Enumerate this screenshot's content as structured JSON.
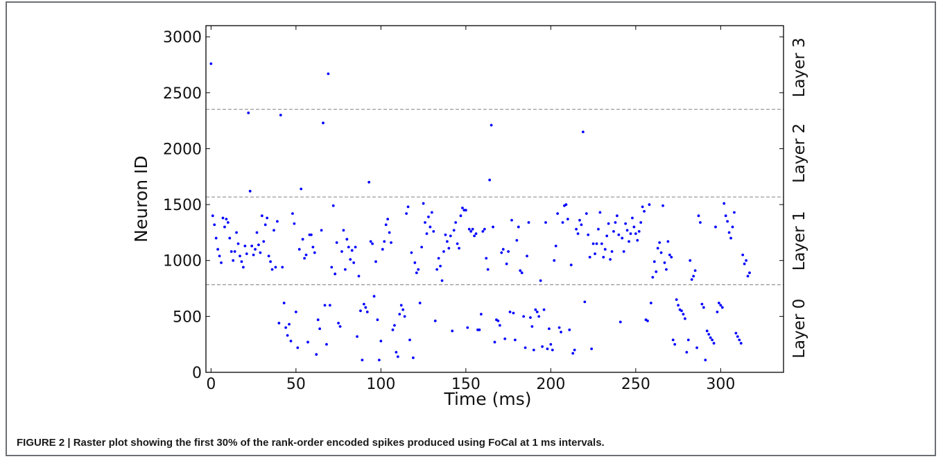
{
  "caption": "FIGURE 2 | Raster plot showing the first 30% of the rank-order encoded spikes produced using FoCal at 1 ms intervals.",
  "chart_data": {
    "type": "scatter",
    "xlabel": "Time (ms)",
    "ylabel": "Neuron ID",
    "xlim": [
      -3,
      337
    ],
    "ylim": [
      0,
      3100
    ],
    "xticks": [
      "0",
      "50",
      "100",
      "150",
      "200",
      "250",
      "300"
    ],
    "yticks": [
      "0",
      "500",
      "1000",
      "1500",
      "2000",
      "2500",
      "3000"
    ],
    "marker_color": "#0000ff",
    "grid": false,
    "layer_boundaries": [
      784,
      1568,
      2352
    ],
    "layer_labels": [
      {
        "label": "Layer 0",
        "y": 392
      },
      {
        "label": "Layer 1",
        "y": 1176
      },
      {
        "label": "Layer 2",
        "y": 1960
      },
      {
        "label": "Layer 3",
        "y": 2726
      }
    ],
    "points": [
      [
        0,
        2760
      ],
      [
        1,
        1400
      ],
      [
        2,
        1320
      ],
      [
        3,
        1200
      ],
      [
        4,
        1100
      ],
      [
        5,
        1040
      ],
      [
        6,
        980
      ],
      [
        7,
        1380
      ],
      [
        8,
        1300
      ],
      [
        9,
        1370
      ],
      [
        10,
        1340
      ],
      [
        11,
        1200
      ],
      [
        12,
        1080
      ],
      [
        13,
        1000
      ],
      [
        14,
        1080
      ],
      [
        15,
        1250
      ],
      [
        16,
        1150
      ],
      [
        17,
        1040
      ],
      [
        18,
        990
      ],
      [
        19,
        940
      ],
      [
        20,
        1130
      ],
      [
        21,
        1060
      ],
      [
        22,
        2320
      ],
      [
        23,
        1620
      ],
      [
        24,
        1130
      ],
      [
        25,
        1050
      ],
      [
        26,
        1100
      ],
      [
        27,
        1250
      ],
      [
        28,
        1140
      ],
      [
        29,
        1070
      ],
      [
        30,
        1400
      ],
      [
        31,
        1170
      ],
      [
        32,
        1320
      ],
      [
        33,
        1380
      ],
      [
        34,
        1040
      ],
      [
        35,
        990
      ],
      [
        36,
        920
      ],
      [
        37,
        1270
      ],
      [
        38,
        940
      ],
      [
        39,
        1350
      ],
      [
        40,
        440
      ],
      [
        41,
        2300
      ],
      [
        42,
        940
      ],
      [
        43,
        620
      ],
      [
        44,
        400
      ],
      [
        45,
        330
      ],
      [
        46,
        430
      ],
      [
        47,
        280
      ],
      [
        48,
        1420
      ],
      [
        49,
        1330
      ],
      [
        50,
        540
      ],
      [
        51,
        220
      ],
      [
        52,
        1100
      ],
      [
        53,
        1640
      ],
      [
        54,
        1190
      ],
      [
        55,
        1020
      ],
      [
        56,
        1050
      ],
      [
        57,
        270
      ],
      [
        58,
        1230
      ],
      [
        59,
        1230
      ],
      [
        60,
        1120
      ],
      [
        61,
        1070
      ],
      [
        62,
        160
      ],
      [
        63,
        470
      ],
      [
        64,
        390
      ],
      [
        65,
        1270
      ],
      [
        66,
        2230
      ],
      [
        67,
        600
      ],
      [
        68,
        250
      ],
      [
        69,
        2670
      ],
      [
        70,
        600
      ],
      [
        71,
        940
      ],
      [
        72,
        1490
      ],
      [
        73,
        880
      ],
      [
        74,
        1160
      ],
      [
        75,
        440
      ],
      [
        76,
        410
      ],
      [
        77,
        1080
      ],
      [
        78,
        1270
      ],
      [
        79,
        920
      ],
      [
        80,
        1190
      ],
      [
        81,
        1120
      ],
      [
        82,
        1010
      ],
      [
        83,
        1090
      ],
      [
        84,
        980
      ],
      [
        85,
        1120
      ],
      [
        86,
        320
      ],
      [
        87,
        860
      ],
      [
        88,
        550
      ],
      [
        89,
        110
      ],
      [
        90,
        610
      ],
      [
        91,
        580
      ],
      [
        92,
        540
      ],
      [
        93,
        1700
      ],
      [
        94,
        1170
      ],
      [
        95,
        1150
      ],
      [
        96,
        680
      ],
      [
        97,
        990
      ],
      [
        98,
        470
      ],
      [
        99,
        110
      ],
      [
        100,
        280
      ],
      [
        101,
        1100
      ],
      [
        102,
        1170
      ],
      [
        103,
        1320
      ],
      [
        104,
        1370
      ],
      [
        105,
        1250
      ],
      [
        106,
        1160
      ],
      [
        107,
        380
      ],
      [
        108,
        420
      ],
      [
        109,
        180
      ],
      [
        110,
        140
      ],
      [
        111,
        520
      ],
      [
        112,
        600
      ],
      [
        113,
        560
      ],
      [
        114,
        500
      ],
      [
        115,
        1420
      ],
      [
        116,
        1480
      ],
      [
        117,
        290
      ],
      [
        118,
        1070
      ],
      [
        119,
        130
      ],
      [
        120,
        980
      ],
      [
        121,
        890
      ],
      [
        122,
        920
      ],
      [
        123,
        620
      ],
      [
        124,
        1120
      ],
      [
        125,
        1510
      ],
      [
        126,
        1340
      ],
      [
        127,
        1240
      ],
      [
        128,
        1390
      ],
      [
        129,
        1300
      ],
      [
        130,
        1430
      ],
      [
        131,
        1260
      ],
      [
        132,
        460
      ],
      [
        133,
        920
      ],
      [
        134,
        1020
      ],
      [
        135,
        950
      ],
      [
        136,
        820
      ],
      [
        137,
        1080
      ],
      [
        138,
        1230
      ],
      [
        139,
        1170
      ],
      [
        140,
        1110
      ],
      [
        141,
        1220
      ],
      [
        142,
        370
      ],
      [
        143,
        1270
      ],
      [
        144,
        1340
      ],
      [
        145,
        1150
      ],
      [
        146,
        1110
      ],
      [
        147,
        1400
      ],
      [
        148,
        1470
      ],
      [
        149,
        1450
      ],
      [
        150,
        1450
      ],
      [
        151,
        400
      ],
      [
        152,
        1280
      ],
      [
        153,
        1260
      ],
      [
        154,
        1280
      ],
      [
        155,
        1220
      ],
      [
        156,
        1240
      ],
      [
        157,
        380
      ],
      [
        158,
        380
      ],
      [
        159,
        520
      ],
      [
        160,
        1260
      ],
      [
        161,
        1280
      ],
      [
        162,
        1020
      ],
      [
        163,
        920
      ],
      [
        164,
        1720
      ],
      [
        165,
        2210
      ],
      [
        166,
        1300
      ],
      [
        167,
        270
      ],
      [
        168,
        470
      ],
      [
        169,
        460
      ],
      [
        170,
        420
      ],
      [
        171,
        1070
      ],
      [
        172,
        1100
      ],
      [
        173,
        300
      ],
      [
        174,
        970
      ],
      [
        175,
        1080
      ],
      [
        176,
        540
      ],
      [
        177,
        1360
      ],
      [
        178,
        530
      ],
      [
        179,
        290
      ],
      [
        180,
        1180
      ],
      [
        181,
        1300
      ],
      [
        182,
        910
      ],
      [
        183,
        890
      ],
      [
        184,
        500
      ],
      [
        185,
        220
      ],
      [
        186,
        1040
      ],
      [
        187,
        1340
      ],
      [
        188,
        490
      ],
      [
        189,
        410
      ],
      [
        190,
        200
      ],
      [
        191,
        560
      ],
      [
        192,
        540
      ],
      [
        193,
        500
      ],
      [
        194,
        820
      ],
      [
        195,
        230
      ],
      [
        196,
        560
      ],
      [
        197,
        1340
      ],
      [
        198,
        210
      ],
      [
        199,
        390
      ],
      [
        200,
        250
      ],
      [
        201,
        200
      ],
      [
        202,
        1000
      ],
      [
        203,
        1130
      ],
      [
        204,
        1420
      ],
      [
        205,
        400
      ],
      [
        206,
        360
      ],
      [
        207,
        1340
      ],
      [
        208,
        1490
      ],
      [
        209,
        1500
      ],
      [
        210,
        1370
      ],
      [
        211,
        380
      ],
      [
        212,
        960
      ],
      [
        213,
        170
      ],
      [
        214,
        200
      ],
      [
        215,
        1280
      ],
      [
        216,
        1240
      ],
      [
        217,
        1360
      ],
      [
        218,
        1320
      ],
      [
        219,
        2150
      ],
      [
        220,
        630
      ],
      [
        221,
        1420
      ],
      [
        222,
        1230
      ],
      [
        223,
        1030
      ],
      [
        224,
        210
      ],
      [
        225,
        1150
      ],
      [
        226,
        1060
      ],
      [
        227,
        1150
      ],
      [
        228,
        1280
      ],
      [
        229,
        1430
      ],
      [
        230,
        1150
      ],
      [
        231,
        1030
      ],
      [
        232,
        1100
      ],
      [
        233,
        1220
      ],
      [
        234,
        1330
      ],
      [
        235,
        1010
      ],
      [
        236,
        1080
      ],
      [
        237,
        1260
      ],
      [
        238,
        1340
      ],
      [
        239,
        1400
      ],
      [
        240,
        1230
      ],
      [
        241,
        450
      ],
      [
        242,
        1200
      ],
      [
        243,
        1080
      ],
      [
        244,
        1330
      ],
      [
        245,
        1270
      ],
      [
        246,
        1170
      ],
      [
        247,
        1240
      ],
      [
        248,
        1380
      ],
      [
        249,
        1300
      ],
      [
        250,
        1240
      ],
      [
        251,
        1180
      ],
      [
        252,
        1260
      ],
      [
        253,
        1340
      ],
      [
        254,
        1480
      ],
      [
        255,
        1440
      ],
      [
        256,
        470
      ],
      [
        257,
        460
      ],
      [
        258,
        1500
      ],
      [
        259,
        620
      ],
      [
        260,
        850
      ],
      [
        261,
        990
      ],
      [
        262,
        900
      ],
      [
        263,
        1110
      ],
      [
        264,
        1160
      ],
      [
        265,
        1070
      ],
      [
        266,
        1490
      ],
      [
        267,
        980
      ],
      [
        268,
        920
      ],
      [
        269,
        1170
      ],
      [
        270,
        1050
      ],
      [
        271,
        1030
      ],
      [
        272,
        290
      ],
      [
        273,
        250
      ],
      [
        274,
        650
      ],
      [
        275,
        600
      ],
      [
        276,
        560
      ],
      [
        277,
        550
      ],
      [
        278,
        520
      ],
      [
        279,
        480
      ],
      [
        280,
        180
      ],
      [
        281,
        290
      ],
      [
        282,
        1000
      ],
      [
        283,
        830
      ],
      [
        284,
        860
      ],
      [
        285,
        910
      ],
      [
        286,
        220
      ],
      [
        287,
        1400
      ],
      [
        288,
        1340
      ],
      [
        289,
        610
      ],
      [
        290,
        580
      ],
      [
        291,
        110
      ],
      [
        292,
        370
      ],
      [
        293,
        340
      ],
      [
        294,
        310
      ],
      [
        295,
        290
      ],
      [
        296,
        260
      ],
      [
        297,
        1300
      ],
      [
        298,
        540
      ],
      [
        299,
        620
      ],
      [
        300,
        600
      ],
      [
        301,
        580
      ],
      [
        302,
        1510
      ],
      [
        303,
        1400
      ],
      [
        304,
        1350
      ],
      [
        305,
        1250
      ],
      [
        306,
        1200
      ],
      [
        307,
        1300
      ],
      [
        308,
        1430
      ],
      [
        309,
        350
      ],
      [
        310,
        320
      ],
      [
        311,
        290
      ],
      [
        312,
        260
      ],
      [
        313,
        1050
      ],
      [
        314,
        970
      ],
      [
        315,
        1000
      ],
      [
        316,
        860
      ],
      [
        317,
        890
      ]
    ]
  }
}
